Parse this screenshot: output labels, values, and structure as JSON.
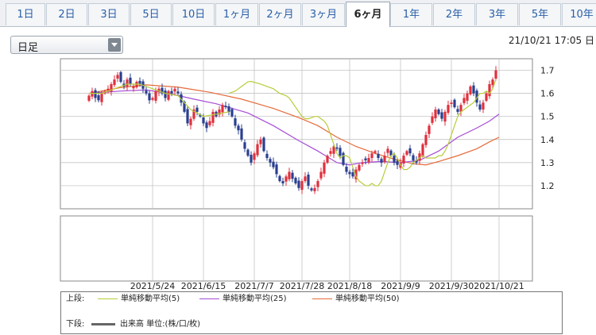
{
  "tabs": [
    {
      "label": "1日",
      "active": false
    },
    {
      "label": "2日",
      "active": false
    },
    {
      "label": "3日",
      "active": false
    },
    {
      "label": "5日",
      "active": false
    },
    {
      "label": "10日",
      "active": false
    },
    {
      "label": "1ヶ月",
      "active": false
    },
    {
      "label": "2ヶ月",
      "active": false
    },
    {
      "label": "3ヶ月",
      "active": false
    },
    {
      "label": "6ヶ月",
      "active": true
    },
    {
      "label": "1年",
      "active": false
    },
    {
      "label": "2年",
      "active": false
    },
    {
      "label": "3年",
      "active": false
    },
    {
      "label": "5年",
      "active": false
    },
    {
      "label": "10年",
      "active": false
    }
  ],
  "period_select": {
    "value": "日足"
  },
  "datetime": "21/10/21 17:05 日",
  "legend": {
    "upper_label": "上段:",
    "lower_label": "下段:",
    "ma5": "単純移動平均(5)",
    "ma25": "単純移動平均(25)",
    "ma50": "単純移動平均(50)",
    "volume": "出来高 単位:(株/口/枚)"
  },
  "colors": {
    "up_candle": "#e0303c",
    "down_candle": "#2a3f8f",
    "ma5": "#b8cc3a",
    "ma25": "#a64dd6",
    "ma50": "#e66a3a",
    "grid": "#bbbbbb"
  },
  "chart_data": {
    "type": "candlestick",
    "ylim": [
      1.1,
      1.75
    ],
    "y_ticks": [
      "1.7",
      "1.6",
      "1.5",
      "1.4",
      "1.3",
      "1.2"
    ],
    "y_tick_values": [
      1.7,
      1.6,
      1.5,
      1.4,
      1.3,
      1.2
    ],
    "x_ticks": [
      "2021/5/24",
      "2021/6/15",
      "2021/7/7",
      "2021/7/28",
      "2021/8/18",
      "2021/9/9",
      "2021/9/30",
      "2021/10/21"
    ],
    "x_tick_index": [
      20,
      36,
      52,
      67,
      82,
      98,
      114,
      129
    ],
    "close": [
      1.59,
      1.61,
      1.58,
      1.57,
      1.6,
      1.61,
      1.62,
      1.64,
      1.66,
      1.68,
      1.65,
      1.63,
      1.66,
      1.64,
      1.63,
      1.65,
      1.64,
      1.62,
      1.6,
      1.57,
      1.58,
      1.61,
      1.62,
      1.6,
      1.58,
      1.61,
      1.6,
      1.62,
      1.6,
      1.56,
      1.52,
      1.47,
      1.49,
      1.53,
      1.52,
      1.5,
      1.47,
      1.45,
      1.48,
      1.52,
      1.5,
      1.53,
      1.55,
      1.54,
      1.52,
      1.5,
      1.46,
      1.44,
      1.4,
      1.36,
      1.33,
      1.3,
      1.34,
      1.38,
      1.4,
      1.35,
      1.32,
      1.3,
      1.28,
      1.25,
      1.22,
      1.21,
      1.24,
      1.26,
      1.23,
      1.21,
      1.19,
      1.22,
      1.24,
      1.2,
      1.18,
      1.19,
      1.22,
      1.26,
      1.3,
      1.33,
      1.35,
      1.37,
      1.36,
      1.33,
      1.29,
      1.26,
      1.25,
      1.24,
      1.27,
      1.29,
      1.3,
      1.31,
      1.32,
      1.34,
      1.35,
      1.32,
      1.3,
      1.33,
      1.36,
      1.33,
      1.3,
      1.29,
      1.3,
      1.33,
      1.35,
      1.34,
      1.31,
      1.3,
      1.34,
      1.38,
      1.42,
      1.46,
      1.5,
      1.53,
      1.51,
      1.49,
      1.52,
      1.55,
      1.56,
      1.54,
      1.52,
      1.55,
      1.58,
      1.6,
      1.63,
      1.6,
      1.56,
      1.53,
      1.56,
      1.6,
      1.64,
      1.66,
      1.7
    ],
    "ma5": [
      1.6,
      1.605,
      1.61,
      1.62,
      1.63,
      1.64,
      1.65,
      1.652,
      1.648,
      1.644,
      1.64,
      1.635,
      1.63,
      1.625,
      1.62,
      1.61,
      1.6,
      1.595,
      1.59,
      1.58,
      1.56,
      1.54,
      1.52,
      1.5,
      1.49,
      1.49,
      1.495,
      1.5,
      1.5,
      1.49,
      1.48,
      1.46,
      1.42,
      1.38,
      1.34,
      1.32,
      1.33,
      1.33,
      1.32,
      1.28,
      1.24,
      1.22,
      1.21,
      1.2,
      1.2,
      1.21,
      1.2,
      1.2,
      1.22,
      1.26,
      1.3,
      1.33,
      1.34,
      1.32,
      1.29,
      1.27,
      1.27,
      1.28,
      1.3,
      1.31,
      1.32,
      1.33,
      1.32,
      1.32,
      1.32,
      1.32,
      1.33,
      1.33,
      1.35,
      1.38,
      1.42,
      1.46,
      1.5,
      1.52,
      1.53,
      1.54,
      1.55,
      1.56,
      1.58,
      1.6,
      1.6,
      1.61,
      1.6,
      1.62,
      1.66
    ],
    "ma5_start": 44,
    "ma25_pts": [
      [
        0,
        1.6
      ],
      [
        10,
        1.61
      ],
      [
        18,
        1.615
      ],
      [
        25,
        1.6
      ],
      [
        33,
        1.575
      ],
      [
        40,
        1.555
      ],
      [
        50,
        1.515
      ],
      [
        58,
        1.46
      ],
      [
        66,
        1.395
      ],
      [
        72,
        1.35
      ],
      [
        78,
        1.3
      ],
      [
        82,
        1.29
      ],
      [
        86,
        1.3
      ],
      [
        92,
        1.305
      ],
      [
        98,
        1.3
      ],
      [
        104,
        1.31
      ],
      [
        110,
        1.35
      ],
      [
        116,
        1.41
      ],
      [
        122,
        1.45
      ],
      [
        126,
        1.48
      ],
      [
        129,
        1.51
      ]
    ],
    "ma50_pts": [
      [
        0,
        1.6
      ],
      [
        10,
        1.625
      ],
      [
        18,
        1.637
      ],
      [
        28,
        1.627
      ],
      [
        38,
        1.605
      ],
      [
        48,
        1.575
      ],
      [
        58,
        1.535
      ],
      [
        66,
        1.495
      ],
      [
        72,
        1.46
      ],
      [
        78,
        1.41
      ],
      [
        84,
        1.37
      ],
      [
        90,
        1.34
      ],
      [
        96,
        1.315
      ],
      [
        102,
        1.295
      ],
      [
        106,
        1.29
      ],
      [
        110,
        1.305
      ],
      [
        116,
        1.33
      ],
      [
        122,
        1.36
      ],
      [
        126,
        1.39
      ],
      [
        129,
        1.41
      ]
    ]
  }
}
